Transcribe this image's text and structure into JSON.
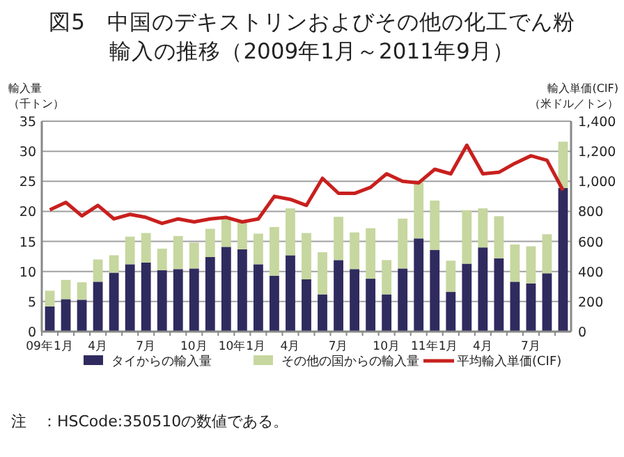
{
  "chart_data": {
    "type": "bar",
    "title": "図5　中国のデキストリンおよびその他の化工でん粉輸入の推移（2009年1月～2011年9月）",
    "ylabel": "輸入量（千トン）",
    "y2label": "輸入単価(CIF)（米ドル／トン）",
    "categories": [
      "09年1月",
      null,
      null,
      "4月",
      null,
      null,
      "7月",
      null,
      null,
      "10月",
      null,
      null,
      "10年1月",
      null,
      null,
      "4月",
      null,
      null,
      "7月",
      null,
      null,
      "10月",
      null,
      null,
      "11年1月",
      null,
      null,
      "4月",
      null,
      null,
      "7月",
      null,
      null
    ],
    "stacked": true,
    "series": [
      {
        "name": "タイからの輸入量",
        "color": "#2f2b5f",
        "values": [
          4.2,
          5.4,
          5.3,
          8.3,
          9.8,
          11.2,
          11.5,
          10.2,
          10.4,
          10.5,
          12.4,
          14.1,
          13.7,
          11.2,
          9.3,
          12.7,
          8.7,
          6.2,
          11.9,
          10.4,
          8.8,
          6.2,
          10.5,
          15.5,
          13.6,
          6.6,
          11.3,
          14.0,
          12.2,
          8.3,
          8.0,
          9.7,
          23.9
        ]
      },
      {
        "name": "その他の国からの輸入量",
        "color": "#c6d7a0",
        "values": [
          2.6,
          3.2,
          2.9,
          3.7,
          2.9,
          4.6,
          4.9,
          3.6,
          5.5,
          4.3,
          4.7,
          5.0,
          4.8,
          5.1,
          8.1,
          7.8,
          7.7,
          7.0,
          7.2,
          6.1,
          8.4,
          5.7,
          8.3,
          9.3,
          8.2,
          5.2,
          8.9,
          6.5,
          7.0,
          6.2,
          6.2,
          6.5,
          7.7
        ]
      },
      {
        "name": "平均輸入単価(CIF)",
        "type": "line",
        "axis": "y2",
        "color": "#c8201e",
        "values": [
          810,
          860,
          770,
          840,
          750,
          780,
          760,
          720,
          750,
          730,
          750,
          760,
          730,
          750,
          900,
          880,
          840,
          1020,
          920,
          920,
          960,
          1050,
          1000,
          990,
          1080,
          1050,
          1240,
          1050,
          1060,
          1120,
          1170,
          1140,
          940
        ]
      }
    ],
    "ylim": [
      0,
      35
    ],
    "yticks": [
      0,
      5,
      10,
      15,
      20,
      25,
      30,
      35
    ],
    "y2lim": [
      0,
      1400
    ],
    "y2ticks": [
      {
        "value": 0,
        "label": "0"
      },
      {
        "value": 200,
        "label": "200"
      },
      {
        "value": 400,
        "label": "400"
      },
      {
        "value": 600,
        "label": "600"
      },
      {
        "value": 800,
        "label": "800"
      },
      {
        "value": 1000,
        "label": "1,000"
      },
      {
        "value": 1200,
        "label": "1,200"
      },
      {
        "value": 1400,
        "label": "1,400"
      }
    ],
    "grid": "y",
    "legend": "bottom",
    "annotations": [
      "注　：HSCode:350510の数値である。"
    ]
  }
}
